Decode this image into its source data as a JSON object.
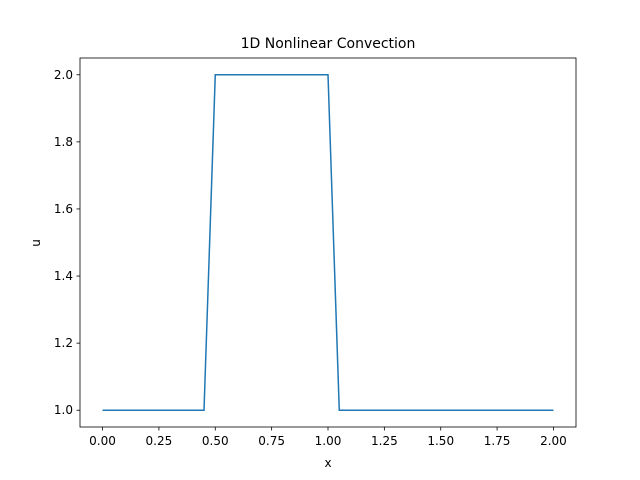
{
  "chart_data": {
    "type": "line",
    "title": "1D Nonlinear Convection",
    "xlabel": "x",
    "ylabel": "u",
    "xlim": [
      -0.1,
      2.1
    ],
    "ylim": [
      0.95,
      2.05
    ],
    "xticks": [
      0.0,
      0.25,
      0.5,
      0.75,
      1.0,
      1.25,
      1.5,
      1.75,
      2.0
    ],
    "xtick_labels": [
      "0.00",
      "0.25",
      "0.50",
      "0.75",
      "1.00",
      "1.25",
      "1.50",
      "1.75",
      "2.00"
    ],
    "yticks": [
      1.0,
      1.2,
      1.4,
      1.6,
      1.8,
      2.0
    ],
    "ytick_labels": [
      "1.0",
      "1.2",
      "1.4",
      "1.6",
      "1.8",
      "2.0"
    ],
    "grid": false,
    "colors": {
      "line": "#1f77b4"
    },
    "series": [
      {
        "x": [
          0.0,
          0.45,
          0.5,
          1.0,
          1.05,
          2.0
        ],
        "values": [
          1.0,
          1.0,
          2.0,
          2.0,
          1.0,
          1.0
        ]
      }
    ]
  }
}
